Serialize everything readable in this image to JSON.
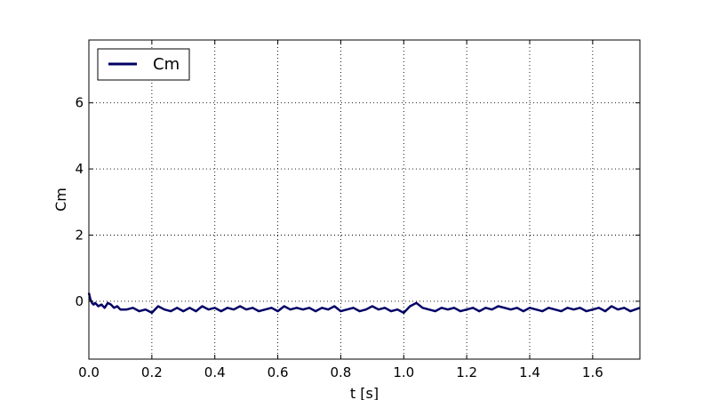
{
  "chart_data": {
    "type": "line",
    "xlabel": "t [s]",
    "ylabel": "Cm",
    "xlim": [
      0,
      1.75
    ],
    "ylim": [
      -1.75,
      7.9
    ],
    "xticks": [
      "0.0",
      "0.2",
      "0.4",
      "0.6",
      "0.8",
      "1.0",
      "1.2",
      "1.4",
      "1.6"
    ],
    "xtick_values": [
      0,
      0.2,
      0.4,
      0.6,
      0.8,
      1.0,
      1.2,
      1.4,
      1.6
    ],
    "yticks": [
      "0",
      "2",
      "4",
      "6"
    ],
    "ytick_values": [
      0,
      2,
      4,
      6
    ],
    "grid": true,
    "legend": {
      "position": "top-left",
      "entries": [
        "Cm"
      ]
    },
    "series": [
      {
        "name": "Cm",
        "color": "#000066",
        "x": [
          0.0,
          0.005,
          0.01,
          0.015,
          0.02,
          0.03,
          0.04,
          0.05,
          0.06,
          0.07,
          0.08,
          0.09,
          0.1,
          0.12,
          0.14,
          0.16,
          0.18,
          0.2,
          0.22,
          0.24,
          0.26,
          0.28,
          0.3,
          0.32,
          0.34,
          0.36,
          0.38,
          0.4,
          0.42,
          0.44,
          0.46,
          0.48,
          0.5,
          0.52,
          0.54,
          0.56,
          0.58,
          0.6,
          0.62,
          0.64,
          0.66,
          0.68,
          0.7,
          0.72,
          0.74,
          0.76,
          0.78,
          0.8,
          0.82,
          0.84,
          0.86,
          0.88,
          0.9,
          0.92,
          0.94,
          0.96,
          0.98,
          1.0,
          1.02,
          1.04,
          1.06,
          1.08,
          1.1,
          1.12,
          1.14,
          1.16,
          1.18,
          1.2,
          1.22,
          1.24,
          1.26,
          1.28,
          1.3,
          1.32,
          1.34,
          1.36,
          1.38,
          1.4,
          1.42,
          1.44,
          1.46,
          1.48,
          1.5,
          1.52,
          1.54,
          1.56,
          1.58,
          1.6,
          1.62,
          1.64,
          1.66,
          1.68,
          1.7,
          1.72,
          1.75
        ],
        "y": [
          0.25,
          0.05,
          -0.05,
          -0.1,
          -0.05,
          -0.15,
          -0.1,
          -0.2,
          -0.05,
          -0.1,
          -0.2,
          -0.15,
          -0.25,
          -0.25,
          -0.2,
          -0.3,
          -0.25,
          -0.35,
          -0.15,
          -0.25,
          -0.3,
          -0.2,
          -0.3,
          -0.2,
          -0.3,
          -0.15,
          -0.25,
          -0.2,
          -0.3,
          -0.2,
          -0.25,
          -0.15,
          -0.25,
          -0.2,
          -0.3,
          -0.25,
          -0.2,
          -0.3,
          -0.15,
          -0.25,
          -0.2,
          -0.25,
          -0.2,
          -0.3,
          -0.2,
          -0.25,
          -0.15,
          -0.3,
          -0.25,
          -0.2,
          -0.3,
          -0.25,
          -0.15,
          -0.25,
          -0.2,
          -0.3,
          -0.25,
          -0.35,
          -0.15,
          -0.05,
          -0.2,
          -0.25,
          -0.3,
          -0.2,
          -0.25,
          -0.2,
          -0.3,
          -0.25,
          -0.2,
          -0.3,
          -0.2,
          -0.25,
          -0.15,
          -0.2,
          -0.25,
          -0.2,
          -0.3,
          -0.2,
          -0.25,
          -0.3,
          -0.2,
          -0.25,
          -0.3,
          -0.2,
          -0.25,
          -0.2,
          -0.3,
          -0.25,
          -0.2,
          -0.3,
          -0.15,
          -0.25,
          -0.2,
          -0.3,
          -0.2
        ]
      }
    ]
  }
}
